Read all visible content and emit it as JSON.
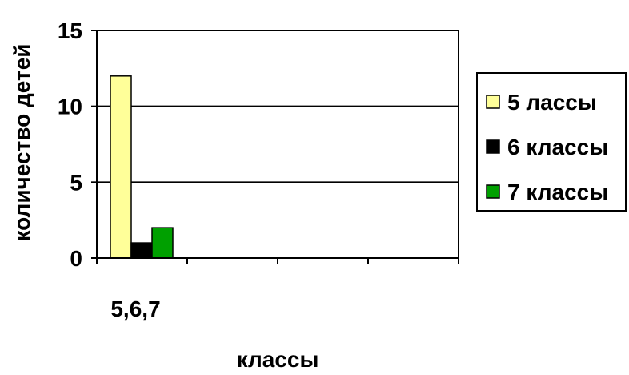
{
  "chart_data": {
    "type": "bar",
    "categories": [
      "5,6,7"
    ],
    "series": [
      {
        "name": "5 лассы",
        "values": [
          12
        ],
        "color": "#FFFF99"
      },
      {
        "name": "6 классы",
        "values": [
          1
        ],
        "color": "#000000"
      },
      {
        "name": "7 классы",
        "values": [
          2
        ],
        "color": "#00A000"
      }
    ],
    "title": "",
    "xlabel": "классы",
    "ylabel": "количество детей",
    "ylim": [
      0,
      15
    ],
    "yticks": [
      0,
      5,
      10,
      15
    ],
    "x_slots": 4,
    "grid": true,
    "legend_position": "right"
  }
}
